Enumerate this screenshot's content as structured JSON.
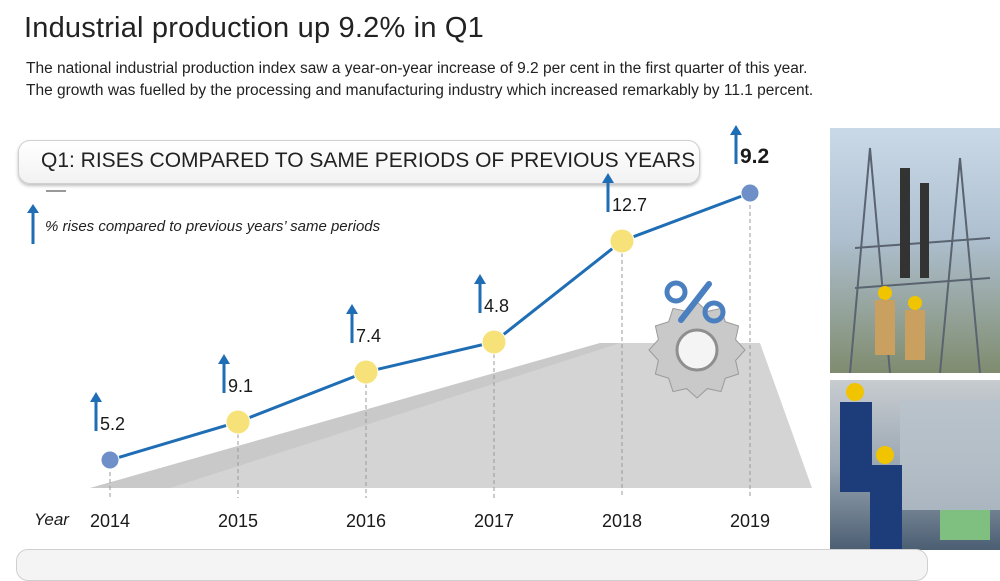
{
  "header": {
    "title": "Industrial production up 9.2% in Q1",
    "subtitle_line1": "The national industrial production index saw a year-on-year increase of 9.2 per cent in the first quarter of this year.",
    "subtitle_line2": "The growth was fuelled by the processing and manufacturing industry which increased remarkably by 11.1 percent."
  },
  "colors": {
    "line": "#1f6eb5",
    "arrow": "#1f6eb5",
    "marker_yellow": "#f7e27a",
    "marker_blue": "#6f8fc9",
    "gear": "#c9c9c9",
    "percent_sign": "#4a7fc0"
  },
  "icons": {
    "legend_icon": "up-arrow-icon",
    "gear_icon": "gear-percent-icon"
  },
  "chart_data": {
    "type": "line",
    "title": "Q1: RISES COMPARED TO SAME PERIODS OF PREVIOUS YEARS",
    "legend": "% rises compared to previous years’ same periods",
    "xlabel": "Year",
    "ylabel": "",
    "x": [
      "2014",
      "2015",
      "2016",
      "2017",
      "2018",
      "2019"
    ],
    "series": [
      {
        "name": "",
        "values": [
          5.2,
          9.1,
          7.4,
          4.8,
          12.7,
          9.2
        ]
      }
    ],
    "labels": [
      "5.2",
      "9.1",
      "7.4",
      "4.8",
      "12.7",
      "9.2"
    ],
    "grid": false
  }
}
